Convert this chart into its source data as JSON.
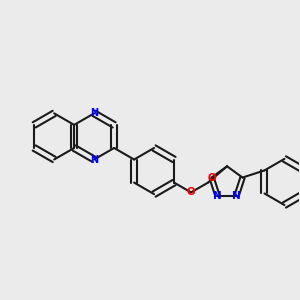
{
  "bg_color": "#ebebeb",
  "bond_color": "#1a1a1a",
  "N_color": "#0000ff",
  "O_color": "#ff0000",
  "line_width": 1.5,
  "figsize": [
    3.0,
    3.0
  ],
  "dpi": 100,
  "xlim": [
    -0.5,
    10.5
  ],
  "ylim": [
    -1.5,
    5.5
  ]
}
